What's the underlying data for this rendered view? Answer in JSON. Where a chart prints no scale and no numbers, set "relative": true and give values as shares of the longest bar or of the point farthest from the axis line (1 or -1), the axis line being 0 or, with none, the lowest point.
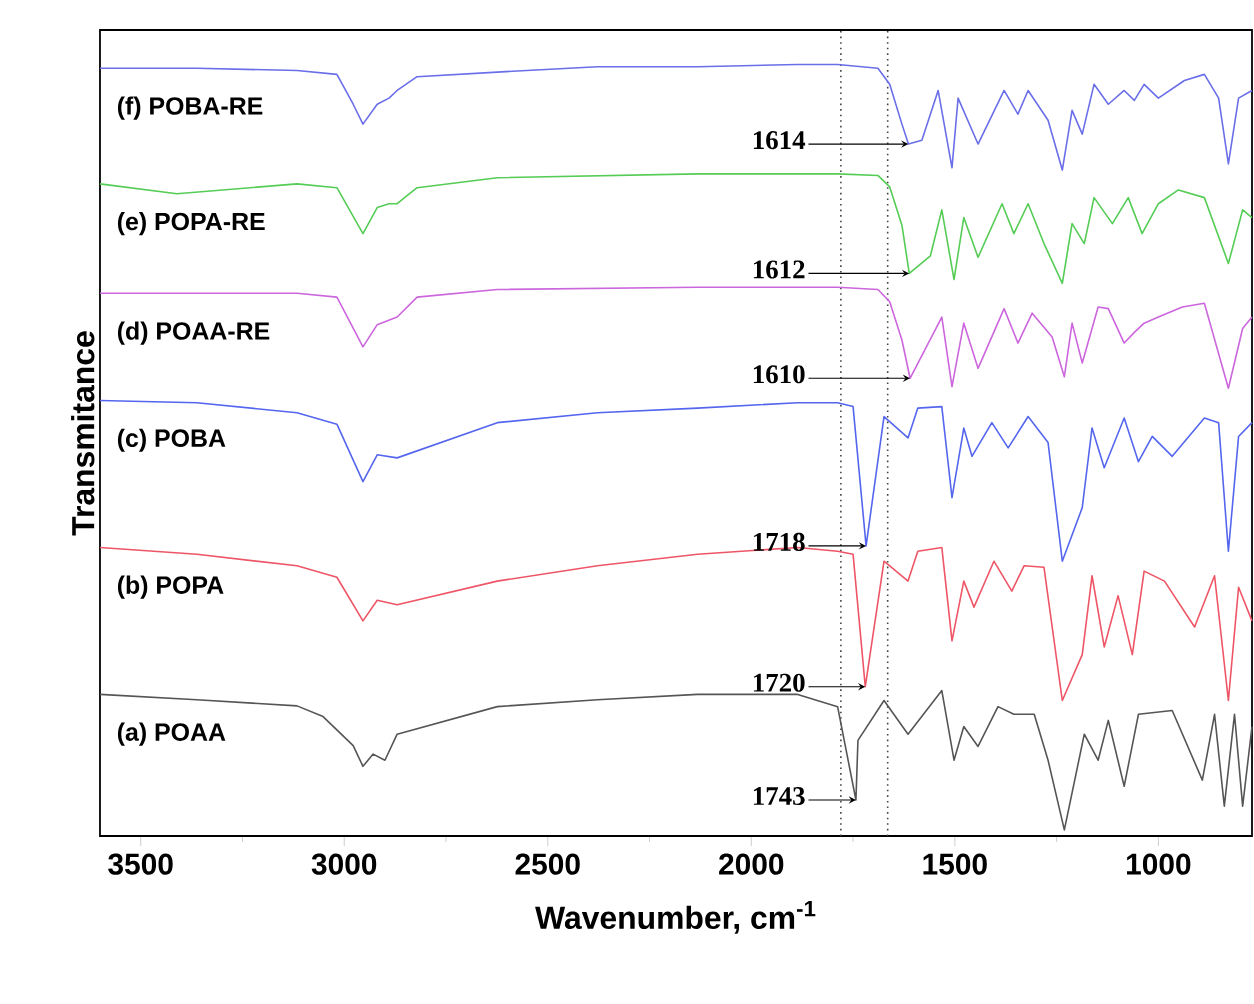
{
  "chart_data": {
    "type": "line",
    "relative": true,
    "xlabel": "Wavenumber, cm$^{-1}$",
    "ylabel": "Transmitance",
    "xlim": [
      3600,
      770
    ],
    "xticks": [
      3500,
      {
        "value": 3250,
        "label": null
      },
      3000,
      {
        "value": 2750,
        "label": null
      },
      2500,
      {
        "value": 2250,
        "label": null
      },
      2000,
      {
        "value": 1750,
        "label": null
      },
      1500,
      {
        "value": 1250,
        "label": null
      },
      1000
    ],
    "grid": false,
    "marker": "none",
    "line_style": "solid",
    "series": [
      {
        "name": "(a) POAA",
        "color": "#555555",
        "x": [
          3600,
          3362,
          3116,
          3052,
          2978,
          2954,
          2929,
          2900,
          2870,
          2624,
          2378,
          2132,
          1886,
          1788,
          1743,
          1738,
          1674,
          1615,
          1532,
          1502,
          1478,
          1443,
          1394,
          1355,
          1305,
          1271,
          1231,
          1182,
          1148,
          1123,
          1084,
          1049,
          966,
          892,
          862,
          838,
          813,
          793,
          770
        ],
        "values": [
          0.177,
          0.17,
          0.162,
          0.148,
          0.11,
          0.083,
          0.099,
          0.091,
          0.125,
          0.161,
          0.17,
          0.177,
          0.177,
          0.161,
          0.039,
          0.117,
          0.169,
          0.125,
          0.182,
          0.091,
          0.135,
          0.109,
          0.161,
          0.151,
          0.151,
          0.091,
          0,
          0.125,
          0.091,
          0.143,
          0.057,
          0.151,
          0.156,
          0.065,
          0.151,
          0.031,
          0.151,
          0.031,
          0.135
        ]
      },
      {
        "name": "(b) POPA",
        "color": "#ee5566",
        "x": [
          3600,
          3362,
          3116,
          3018,
          2954,
          2919,
          2870,
          2624,
          2378,
          2132,
          1886,
          1788,
          1750,
          1720,
          1674,
          1615,
          1591,
          1532,
          1507,
          1478,
          1453,
          1404,
          1360,
          1330,
          1281,
          1236,
          1187,
          1163,
          1133,
          1099,
          1064,
          1035,
          985,
          911,
          862,
          828,
          803,
          770
        ],
        "values": [
          0.369,
          0.36,
          0.345,
          0.33,
          0.273,
          0.3,
          0.294,
          0.325,
          0.345,
          0.36,
          0.369,
          0.364,
          0.36,
          0.187,
          0.351,
          0.325,
          0.364,
          0.369,
          0.247,
          0.325,
          0.291,
          0.351,
          0.312,
          0.345,
          0.343,
          0.169,
          0.229,
          0.332,
          0.239,
          0.306,
          0.229,
          0.338,
          0.325,
          0.265,
          0.332,
          0.169,
          0.317,
          0.273
        ]
      },
      {
        "name": "(c) POBA",
        "color": "#5566ee",
        "x": [
          3600,
          3362,
          3116,
          3018,
          2954,
          2919,
          2870,
          2624,
          2378,
          2132,
          1886,
          1788,
          1750,
          1718,
          1674,
          1615,
          1591,
          1532,
          1507,
          1478,
          1458,
          1409,
          1369,
          1320,
          1271,
          1236,
          1187,
          1163,
          1133,
          1084,
          1049,
          1015,
          966,
          887,
          852,
          828,
          803,
          770
        ],
        "values": [
          0.561,
          0.558,
          0.545,
          0.53,
          0.455,
          0.49,
          0.486,
          0.532,
          0.545,
          0.551,
          0.558,
          0.558,
          0.553,
          0.371,
          0.54,
          0.512,
          0.551,
          0.553,
          0.434,
          0.525,
          0.488,
          0.532,
          0.499,
          0.54,
          0.506,
          0.351,
          0.421,
          0.525,
          0.473,
          0.538,
          0.481,
          0.514,
          0.488,
          0.538,
          0.532,
          0.364,
          0.514,
          0.532
        ]
      },
      {
        "name": "(d) POAA-RE",
        "color": "#cc66dd",
        "x": [
          3600,
          3116,
          3018,
          2954,
          2919,
          2870,
          2821,
          2624,
          2132,
          1788,
          1689,
          1660,
          1630,
          1610,
          1532,
          1507,
          1478,
          1443,
          1379,
          1345,
          1310,
          1261,
          1231,
          1212,
          1187,
          1148,
          1123,
          1084,
          1059,
          1035,
          1000,
          941,
          887,
          828,
          793,
          770
        ],
        "values": [
          0.701,
          0.701,
          0.696,
          0.631,
          0.66,
          0.67,
          0.696,
          0.706,
          0.709,
          0.709,
          0.706,
          0.69,
          0.64,
          0.59,
          0.67,
          0.579,
          0.662,
          0.603,
          0.681,
          0.636,
          0.675,
          0.644,
          0.592,
          0.662,
          0.61,
          0.683,
          0.681,
          0.636,
          0.65,
          0.662,
          0.67,
          0.683,
          0.688,
          0.577,
          0.655,
          0.67
        ]
      },
      {
        "name": "(e) POPA-RE",
        "color": "#55cc55",
        "x": [
          3600,
          3411,
          3116,
          3018,
          2954,
          2919,
          2890,
          2870,
          2821,
          2624,
          2132,
          1788,
          1689,
          1660,
          1630,
          1612,
          1560,
          1532,
          1502,
          1478,
          1443,
          1384,
          1355,
          1320,
          1281,
          1236,
          1212,
          1182,
          1158,
          1113,
          1074,
          1040,
          1000,
          951,
          887,
          828,
          793,
          770
        ],
        "values": [
          0.844,
          0.831,
          0.844,
          0.839,
          0.779,
          0.813,
          0.818,
          0.818,
          0.839,
          0.852,
          0.857,
          0.857,
          0.855,
          0.84,
          0.79,
          0.727,
          0.75,
          0.81,
          0.719,
          0.8,
          0.748,
          0.818,
          0.779,
          0.818,
          0.766,
          0.714,
          0.792,
          0.766,
          0.826,
          0.792,
          0.826,
          0.779,
          0.818,
          0.836,
          0.826,
          0.74,
          0.81,
          0.8
        ]
      },
      {
        "name": "(f) POBA-RE",
        "color": "#6a6ee8",
        "x": [
          3600,
          3362,
          3116,
          3018,
          2978,
          2954,
          2919,
          2890,
          2870,
          2821,
          2624,
          2378,
          2132,
          1886,
          1788,
          1689,
          1660,
          1630,
          1614,
          1581,
          1541,
          1507,
          1492,
          1443,
          1379,
          1345,
          1320,
          1271,
          1236,
          1212,
          1187,
          1158,
          1123,
          1084,
          1059,
          1035,
          1000,
          936,
          887,
          852,
          828,
          803,
          770
        ],
        "values": [
          0.995,
          0.995,
          0.992,
          0.987,
          0.948,
          0.922,
          0.948,
          0.956,
          0.966,
          0.984,
          0.99,
          0.997,
          0.997,
          1.0,
          1.0,
          0.995,
          0.974,
          0.922,
          0.896,
          0.901,
          0.966,
          0.865,
          0.956,
          0.896,
          0.966,
          0.935,
          0.966,
          0.927,
          0.862,
          0.94,
          0.909,
          0.974,
          0.948,
          0.966,
          0.953,
          0.974,
          0.956,
          0.979,
          0.987,
          0.956,
          0.87,
          0.956,
          0.966
        ]
      }
    ],
    "ref_lines": [
      {
        "axis": "x",
        "value": 1780,
        "color": "#444444",
        "line_style": "dotted"
      },
      {
        "axis": "x",
        "value": 1665,
        "color": "#444444",
        "line_style": "dotted"
      }
    ],
    "annotations": [
      {
        "text": "1614",
        "x": 1614,
        "y": 0.896
      },
      {
        "text": "1612",
        "x": 1612,
        "y": 0.727
      },
      {
        "text": "1610",
        "x": 1610,
        "y": 0.59
      },
      {
        "text": "1718",
        "x": 1718,
        "y": 0.371
      },
      {
        "text": "1720",
        "x": 1720,
        "y": 0.187
      },
      {
        "text": "1743",
        "x": 1743,
        "y": 0.039
      }
    ]
  }
}
